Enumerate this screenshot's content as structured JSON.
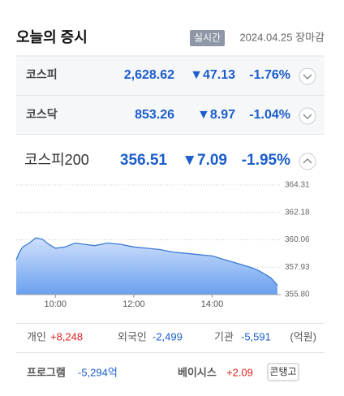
{
  "header": {
    "title": "오늘의 증시",
    "badge": "실시간",
    "date": "2024.04.25 장마감"
  },
  "indices": [
    {
      "name": "코스피",
      "value": "2,628.62",
      "change": "▼47.13",
      "rate": "-1.76%"
    },
    {
      "name": "코스닥",
      "value": "853.26",
      "change": "▼8.97",
      "rate": "-1.04%"
    },
    {
      "name": "코스피200",
      "value": "356.51",
      "change": "▼7.09",
      "rate": "-1.95%"
    }
  ],
  "chart_data": {
    "type": "line",
    "x": [
      "09:00",
      "09:05",
      "09:10",
      "09:20",
      "09:30",
      "09:40",
      "09:50",
      "10:00",
      "10:15",
      "10:30",
      "10:45",
      "11:00",
      "11:20",
      "11:40",
      "12:00",
      "12:20",
      "12:40",
      "13:00",
      "13:20",
      "13:40",
      "14:00",
      "14:20",
      "14:40",
      "15:00",
      "15:10",
      "15:20",
      "15:30",
      "15:40"
    ],
    "series": [
      {
        "color": "#3a7bd5",
        "values": [
          358.5,
          359.1,
          359.5,
          359.8,
          360.2,
          360.1,
          359.7,
          359.4,
          359.5,
          359.8,
          359.7,
          359.6,
          359.8,
          359.7,
          359.5,
          359.4,
          359.3,
          359.1,
          359.0,
          358.9,
          358.8,
          358.5,
          358.2,
          357.9,
          357.7,
          357.4,
          357.1,
          356.51
        ]
      }
    ],
    "xlim": [
      "09:00",
      "15:45"
    ],
    "xticks": [
      "10:00",
      "12:00",
      "14:00"
    ],
    "ylim": [
      355.8,
      364.31
    ],
    "yticks": [
      {
        "value": 355.8,
        "label": "355.80"
      },
      357.93,
      360.06,
      362.18,
      364.31
    ],
    "grid": true
  },
  "investors": [
    {
      "label": "개인",
      "value": "+8,248"
    },
    {
      "label": "외국인",
      "value": "-2,499"
    },
    {
      "label": "기관",
      "value": "-5,591"
    }
  ],
  "unit": "(억원)",
  "program": {
    "label": "프로그램",
    "value": "-5,294억"
  },
  "basis": {
    "label": "베이시스",
    "value": "+2.09",
    "tag": "콘탱고"
  }
}
